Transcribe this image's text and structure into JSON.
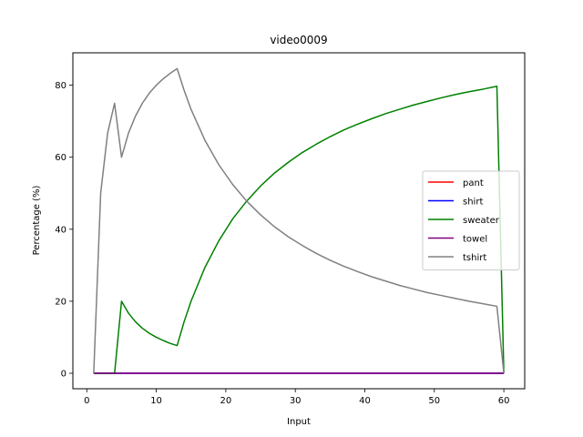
{
  "chart_data": {
    "type": "line",
    "title": "video0009",
    "xlabel": "Input",
    "ylabel": "Percentage (%)",
    "xlim": [
      -2.0,
      63.0
    ],
    "ylim": [
      -4.3,
      89.0
    ],
    "xticks": [
      0,
      10,
      20,
      30,
      40,
      50,
      60
    ],
    "yticks": [
      0,
      20,
      40,
      60,
      80
    ],
    "grid": false,
    "legend_position": "center-right",
    "series": [
      {
        "name": "pant",
        "color": "#ff0000",
        "x": [
          1,
          60
        ],
        "y": [
          0,
          0
        ]
      },
      {
        "name": "shirt",
        "color": "#0000ff",
        "x": [
          1,
          60
        ],
        "y": [
          0,
          0
        ]
      },
      {
        "name": "sweater",
        "color": "#008000",
        "x": [
          1,
          2,
          3,
          4,
          5,
          6,
          7,
          8,
          9,
          10,
          11,
          12,
          13,
          14,
          15,
          17,
          19,
          21,
          23,
          25,
          27,
          29,
          31,
          33,
          35,
          37,
          39,
          41,
          43,
          45,
          47,
          49,
          51,
          53,
          55,
          57,
          59,
          60
        ],
        "y": [
          0,
          0,
          0,
          0,
          20.0,
          16.7,
          14.3,
          12.5,
          11.1,
          10.0,
          9.1,
          8.3,
          7.7,
          14.3,
          20.0,
          29.4,
          36.8,
          42.9,
          47.8,
          52.0,
          55.6,
          58.6,
          61.3,
          63.6,
          65.7,
          67.6,
          69.2,
          70.7,
          72.1,
          73.3,
          74.5,
          75.5,
          76.5,
          77.4,
          78.2,
          78.9,
          79.7,
          0
        ]
      },
      {
        "name": "towel",
        "color": "#800080",
        "x": [
          1,
          60
        ],
        "y": [
          0,
          0
        ]
      },
      {
        "name": "tshirt",
        "color": "#808080",
        "x": [
          1,
          2,
          3,
          4,
          5,
          6,
          7,
          8,
          9,
          10,
          11,
          12,
          13,
          14,
          15,
          17,
          19,
          21,
          23,
          25,
          27,
          29,
          31,
          33,
          35,
          37,
          39,
          41,
          43,
          45,
          47,
          49,
          51,
          53,
          55,
          57,
          59,
          60
        ],
        "y": [
          0,
          50.0,
          66.7,
          75.0,
          60.0,
          66.7,
          71.4,
          75.0,
          77.8,
          80.0,
          81.8,
          83.3,
          84.6,
          78.6,
          73.3,
          64.7,
          57.9,
          52.4,
          47.8,
          44.0,
          40.7,
          37.9,
          35.5,
          33.3,
          31.4,
          29.7,
          28.2,
          26.8,
          25.6,
          24.4,
          23.4,
          22.4,
          21.6,
          20.8,
          20.0,
          19.3,
          18.6,
          0
        ]
      }
    ]
  }
}
